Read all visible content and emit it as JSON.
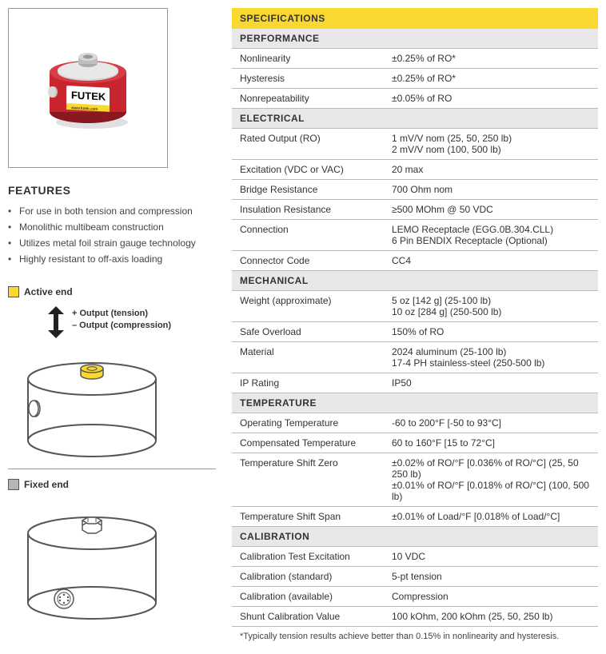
{
  "features": {
    "title": "FEATURES",
    "items": [
      "For use in both tension and compression",
      "Monolithic multibeam construction",
      "Utilizes metal foil strain gauge technology",
      "Highly resistant to off-axis loading"
    ]
  },
  "diagrams": {
    "activeEndLabel": "Active end",
    "fixedEndLabel": "Fixed end",
    "outputTension": "+ Output (tension)",
    "outputCompression": "– Output (compression)",
    "colors": {
      "activeSwatch": "#f9d931",
      "fixedSwatch": "#b5b5b5",
      "stroke": "#555555"
    }
  },
  "product": {
    "bodyColor": "#c8252f",
    "capColor": "#cfcfcf",
    "labelBg": "#ffffff",
    "labelText": "FUTEK",
    "labelSub": "www.futek.com"
  },
  "specs": {
    "title": "SPECIFICATIONS",
    "sections": [
      {
        "header": "PERFORMANCE",
        "rows": [
          {
            "label": "Nonlinearity",
            "value": "±0.25% of RO*"
          },
          {
            "label": "Hysteresis",
            "value": "±0.25% of RO*"
          },
          {
            "label": "Nonrepeatability",
            "value": "±0.05% of RO"
          }
        ]
      },
      {
        "header": "ELECTRICAL",
        "rows": [
          {
            "label": "Rated Output (RO)",
            "value": "1 mV/V nom (25, 50, 250 lb)\n2 mV/V nom (100, 500 lb)"
          },
          {
            "label": "Excitation (VDC or VAC)",
            "value": "20 max"
          },
          {
            "label": "Bridge Resistance",
            "value": "700 Ohm nom"
          },
          {
            "label": "Insulation Resistance",
            "value": "≥500 MOhm @ 50 VDC"
          },
          {
            "label": "Connection",
            "value": "LEMO Receptacle (EGG.0B.304.CLL)\n6 Pin BENDIX Receptacle (Optional)"
          },
          {
            "label": "Connector Code",
            "value": "CC4"
          }
        ]
      },
      {
        "header": "MECHANICAL",
        "rows": [
          {
            "label": "Weight (approximate)",
            "value": "5 oz [142 g] (25-100 lb)\n10 oz [284 g] (250-500 lb)"
          },
          {
            "label": "Safe Overload",
            "value": "150% of RO"
          },
          {
            "label": "Material",
            "value": "2024 aluminum (25-100 lb)\n17-4 PH stainless-steel (250-500 lb)"
          },
          {
            "label": "IP Rating",
            "value": "IP50"
          }
        ]
      },
      {
        "header": "TEMPERATURE",
        "rows": [
          {
            "label": "Operating Temperature",
            "value": "-60 to 200°F [-50 to 93°C]"
          },
          {
            "label": "Compensated Temperature",
            "value": "60 to 160°F [15 to 72°C]"
          },
          {
            "label": "Temperature Shift Zero",
            "value": "±0.02% of RO/°F [0.036% of RO/°C] (25, 50 250 lb)\n±0.01% of RO/°F [0.018% of RO/°C] (100, 500 lb)"
          },
          {
            "label": "Temperature Shift Span",
            "value": "±0.01% of Load/°F [0.018% of Load/°C]"
          }
        ]
      },
      {
        "header": "CALIBRATION",
        "rows": [
          {
            "label": "Calibration Test Excitation",
            "value": "10 VDC"
          },
          {
            "label": "Calibration (standard)",
            "value": "5-pt tension"
          },
          {
            "label": "Calibration (available)",
            "value": "Compression"
          },
          {
            "label": "Shunt Calibration Value",
            "value": "100 kOhm, 200 kOhm (25, 50, 250 lb)"
          }
        ]
      }
    ],
    "footnote": "*Typically tension results achieve better than 0.15% in nonlinearity and hysteresis."
  }
}
